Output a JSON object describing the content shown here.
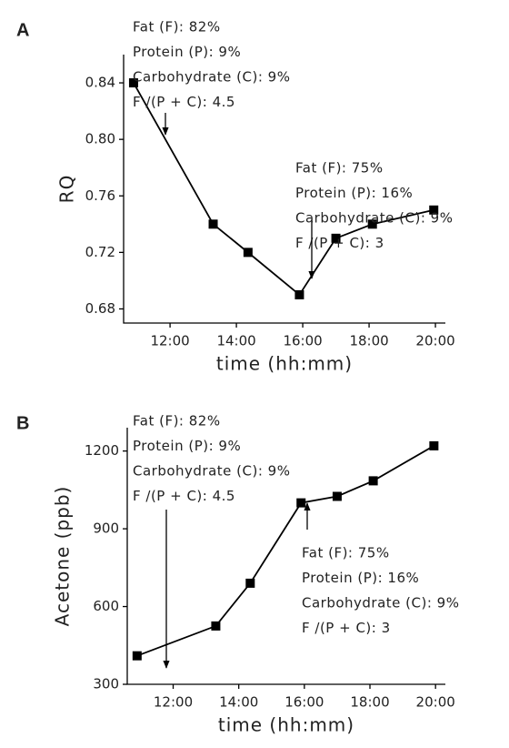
{
  "chart_data": [
    {
      "type": "line",
      "panel_label": "A",
      "xlabel": "time (hh:mm)",
      "ylabel": "RQ",
      "color": "#000000",
      "x": [
        10.9,
        13.3,
        14.35,
        15.9,
        17.0,
        18.1,
        19.95
      ],
      "values": [
        0.84,
        0.74,
        0.72,
        0.69,
        0.73,
        0.74,
        0.75
      ],
      "xlim": [
        10.6,
        20.3
      ],
      "ylim": [
        0.67,
        0.86
      ],
      "xticks": [
        {
          "value": 12,
          "label": "12:00"
        },
        {
          "value": 14,
          "label": "14:00"
        },
        {
          "value": 16,
          "label": "16:00"
        },
        {
          "value": 18,
          "label": "18:00"
        },
        {
          "value": 20,
          "label": "20:00"
        }
      ],
      "yticks": [
        0.68,
        0.72,
        0.76,
        {
          "value": 0.8,
          "label": "0.80"
        },
        0.84
      ],
      "annotations": [
        {
          "lines": [
            "Fat (F): 82%",
            "Protein (P): 9%",
            "Carbohydrate (C): 9%",
            "F /(P + C): 4.5"
          ]
        },
        {
          "lines": [
            "Fat (F): 75%",
            "Protein (P): 16%",
            "Carbohydrate (C): 9%",
            "F /(P + C): 3"
          ]
        }
      ]
    },
    {
      "type": "line",
      "panel_label": "B",
      "xlabel": "time (hh:mm)",
      "ylabel": "Acetone (ppb)",
      "color": "#000000",
      "x": [
        10.9,
        13.3,
        14.35,
        15.9,
        17.0,
        18.1,
        19.95
      ],
      "values": [
        410,
        525,
        690,
        1000,
        1025,
        1085,
        1220
      ],
      "xlim": [
        10.6,
        20.3
      ],
      "ylim": [
        300,
        1290
      ],
      "xticks": [
        {
          "value": 12,
          "label": "12:00"
        },
        {
          "value": 14,
          "label": "14:00"
        },
        {
          "value": 16,
          "label": "16:00"
        },
        {
          "value": 18,
          "label": "18:00"
        },
        {
          "value": 20,
          "label": "20:00"
        }
      ],
      "yticks": [
        300,
        600,
        900,
        1200
      ],
      "annotations": [
        {
          "lines": [
            "Fat (F): 82%",
            "Protein (P): 9%",
            "Carbohydrate (C): 9%",
            "F /(P + C): 4.5"
          ]
        },
        {
          "lines": [
            "Fat (F): 75%",
            "Protein (P): 16%",
            "Carbohydrate (C): 9%",
            "F /(P + C): 3"
          ]
        }
      ]
    }
  ]
}
